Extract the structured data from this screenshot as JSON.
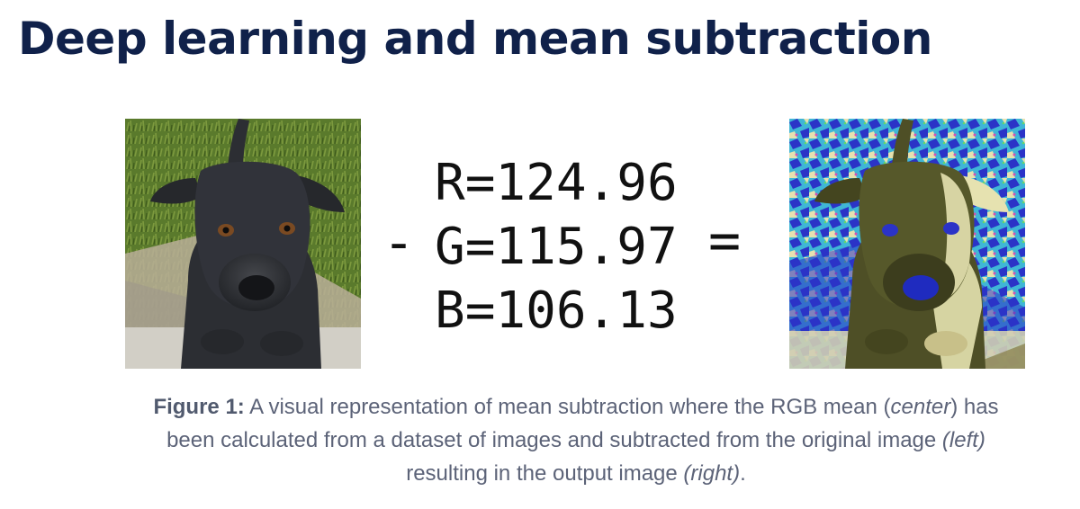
{
  "heading": {
    "title": "Deep learning and mean subtraction"
  },
  "figure": {
    "left_image": {
      "icon": "dog-photo-icon",
      "colors": {
        "grass": "#5a7a2c",
        "dirt": "#b9ae98",
        "fur": "#2c2e33"
      }
    },
    "right_image": {
      "icon": "mean-subtracted-dog-photo-icon",
      "colors": {
        "cyan": "#3fb6d6",
        "blue": "#2b33c7",
        "olive": "#4e4f26",
        "cream": "#e6e2b0"
      }
    },
    "formula": {
      "minus": "-",
      "equals": "=",
      "lines": [
        "R=124.96",
        "G=115.97",
        "B=106.13"
      ]
    }
  },
  "caption": {
    "label": "Figure 1:",
    "part1": " A visual representation of mean subtraction where the RGB mean (",
    "center": "center",
    "part2": ") has been calculated from a dataset of images and subtracted from the original image ",
    "left": "(left)",
    "part3": " resulting in the output image ",
    "right": "(right)",
    "part4": "."
  }
}
